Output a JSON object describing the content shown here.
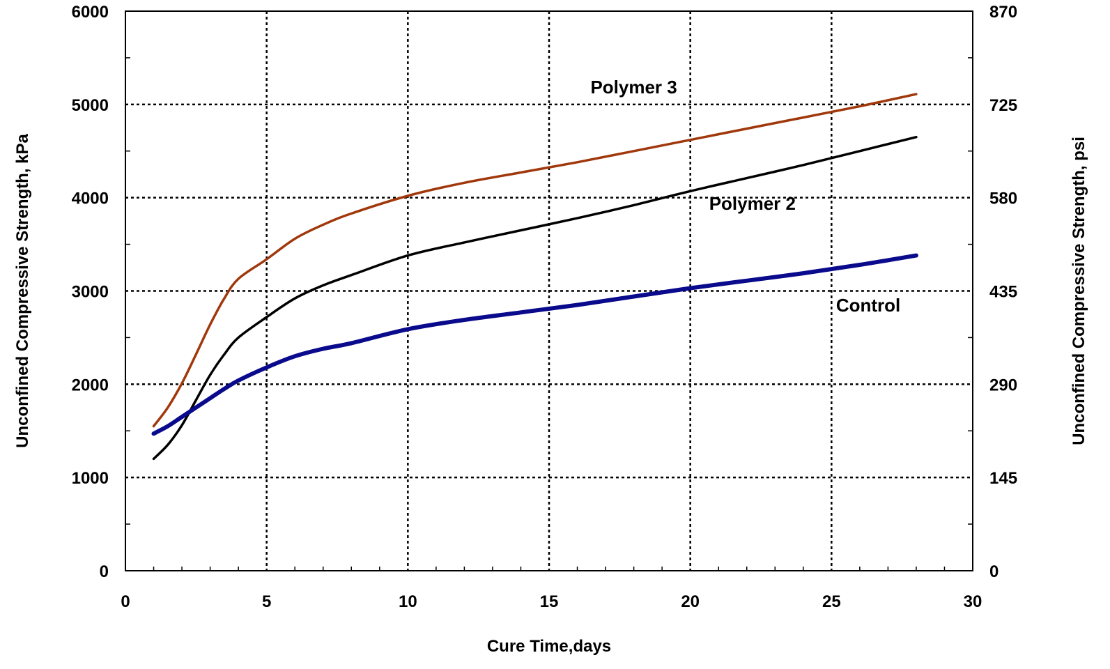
{
  "chart_data": {
    "type": "line",
    "title": "",
    "xlabel": "Cure Time,days",
    "ylabel": "Unconfined Compressive Strength, kPa",
    "y2label": "Unconfined Compressive Strength, psi",
    "xlim": [
      0,
      30
    ],
    "ylim": [
      0,
      6000
    ],
    "x_ticks": [
      0,
      5,
      10,
      15,
      20,
      25,
      30
    ],
    "y_ticks": [
      0,
      1000,
      2000,
      3000,
      4000,
      5000,
      6000
    ],
    "y2_ticks": [
      0,
      145,
      290,
      435,
      580,
      725,
      870
    ],
    "grid": true,
    "series": [
      {
        "name": "Polymer 3",
        "color": "#a0380c",
        "x": [
          1,
          1.5,
          2,
          2.5,
          3,
          3.5,
          4,
          5,
          6,
          7,
          8,
          10,
          12,
          14,
          16,
          18,
          20,
          22,
          24,
          26,
          28
        ],
        "y": [
          1550,
          1750,
          2010,
          2320,
          2640,
          2920,
          3130,
          3340,
          3560,
          3710,
          3830,
          4020,
          4160,
          4270,
          4380,
          4500,
          4620,
          4740,
          4860,
          4980,
          5110
        ]
      },
      {
        "name": "Polymer 2",
        "color": "#000000",
        "x": [
          1,
          1.5,
          2,
          2.5,
          3,
          3.5,
          4,
          5,
          6,
          7,
          8,
          10,
          12,
          14,
          16,
          18,
          20,
          22,
          24,
          26,
          28
        ],
        "y": [
          1200,
          1350,
          1560,
          1830,
          2100,
          2320,
          2500,
          2720,
          2920,
          3060,
          3170,
          3380,
          3520,
          3650,
          3780,
          3920,
          4070,
          4210,
          4350,
          4500,
          4650
        ]
      },
      {
        "name": "Control",
        "color": "#0a0a8c",
        "x": [
          1,
          1.5,
          2,
          2.5,
          3,
          3.5,
          4,
          5,
          6,
          7,
          8,
          10,
          12,
          14,
          16,
          18,
          20,
          22,
          24,
          26,
          28
        ],
        "y": [
          1470,
          1550,
          1650,
          1750,
          1850,
          1950,
          2040,
          2180,
          2300,
          2380,
          2440,
          2590,
          2690,
          2770,
          2850,
          2940,
          3030,
          3110,
          3190,
          3280,
          3380
        ]
      }
    ],
    "annotations": [
      {
        "text": "Polymer 3",
        "x": 18,
        "y": 5120
      },
      {
        "text": "Polymer 2",
        "x": 22.2,
        "y": 3870
      },
      {
        "text": "Control",
        "x": 26.3,
        "y": 2780
      }
    ]
  }
}
